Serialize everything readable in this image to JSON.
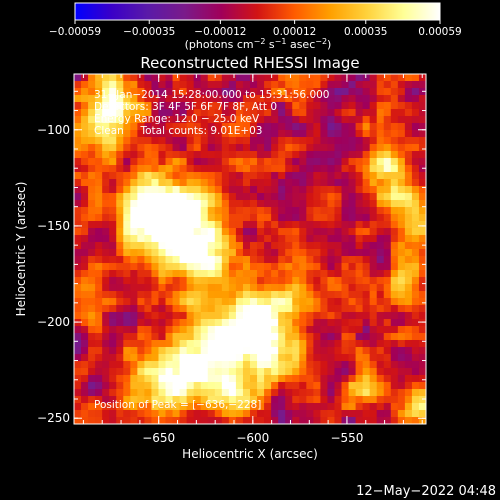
{
  "chart_data": {
    "type": "heatmap",
    "title": "Reconstructed RHESSI Image",
    "xlabel": "Heliocentric X (arcsec)",
    "ylabel": "Heliocentric Y (arcsec)",
    "xlim": [
      -695,
      -508
    ],
    "ylim": [
      -253,
      -71
    ],
    "x_ticks": [
      -650,
      -600,
      -550
    ],
    "y_ticks": [
      -100,
      -150,
      -200,
      -250
    ],
    "x_tick_labels": [
      "−650",
      "−600",
      "−550"
    ],
    "y_tick_labels": [
      "−100",
      "−150",
      "−200",
      "−250"
    ],
    "colorbar": {
      "min": -0.00059,
      "max": 0.00059,
      "tick_values": [
        -0.00059,
        -0.00035,
        -0.00012,
        0.00012,
        0.00035,
        0.00059
      ],
      "tick_labels": [
        "−0.00059",
        "−0.00035",
        "−0.00012",
        "0.00012",
        "0.00035",
        "0.00059"
      ],
      "unit_parts": [
        "(photons cm",
        "−2",
        " s",
        "−1",
        " asec",
        "−2",
        ")"
      ],
      "colors": [
        "#0000ff",
        "#3a00c8",
        "#5a1aa8",
        "#7a1a8a",
        "#a0005a",
        "#d21414",
        "#ff5a00",
        "#ffa000",
        "#ffd23c",
        "#ffff96",
        "#ffffff"
      ]
    },
    "info_lines": [
      "31−Jan−2014 15:28:00.000 to 15:31:56.000",
      "Detectors: 3F 4F 5F 6F 7F 8F, Att 0",
      "Energy Range: 12.0 − 25.0 keV",
      "Clean     Total counts: 9.01E+03"
    ],
    "peak_label": "Position of Peak = [−636,−228]",
    "peak": [
      -636,
      -228
    ],
    "sources": [
      {
        "x": -640,
        "y": -150,
        "amp": 0.00055,
        "sigma": 16
      },
      {
        "x": -655,
        "y": -142,
        "amp": 0.00045,
        "sigma": 14
      },
      {
        "x": -625,
        "y": -165,
        "amp": 0.0004,
        "sigma": 14
      },
      {
        "x": -636,
        "y": -228,
        "amp": 0.00062,
        "sigma": 10
      },
      {
        "x": -620,
        "y": -212,
        "amp": 0.00052,
        "sigma": 15
      },
      {
        "x": -600,
        "y": -200,
        "amp": 0.00045,
        "sigma": 14
      },
      {
        "x": -590,
        "y": -215,
        "amp": 0.0004,
        "sigma": 11
      },
      {
        "x": -580,
        "y": -190,
        "amp": 0.00032,
        "sigma": 10
      },
      {
        "x": -610,
        "y": -238,
        "amp": 0.0004,
        "sigma": 10
      },
      {
        "x": -660,
        "y": -235,
        "amp": 0.0004,
        "sigma": 10
      },
      {
        "x": -680,
        "y": -100,
        "amp": 0.00055,
        "sigma": 10
      },
      {
        "x": -670,
        "y": -80,
        "amp": 0.00045,
        "sigma": 10
      },
      {
        "x": -688,
        "y": -190,
        "amp": 0.0003,
        "sigma": 8
      },
      {
        "x": -528,
        "y": -122,
        "amp": 0.00055,
        "sigma": 9
      },
      {
        "x": -515,
        "y": -145,
        "amp": 0.0004,
        "sigma": 9
      },
      {
        "x": -518,
        "y": -175,
        "amp": 0.00035,
        "sigma": 8
      },
      {
        "x": -512,
        "y": -247,
        "amp": 0.0004,
        "sigma": 7
      },
      {
        "x": -540,
        "y": -235,
        "amp": 0.00025,
        "sigma": 7
      }
    ]
  },
  "footer": {
    "timestamp": "12−May−2022 04:48"
  }
}
